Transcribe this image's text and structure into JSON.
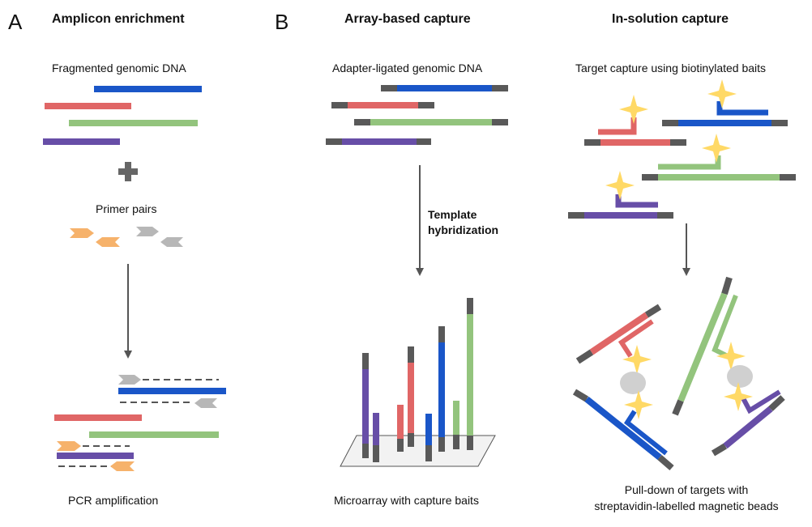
{
  "panel_a": {
    "letter": "A",
    "title": "Amplicon enrichment",
    "step1": "Fragmented genomic DNA",
    "step2": "Primer pairs",
    "step3": "PCR amplification"
  },
  "panel_b": {
    "letter": "B",
    "array": {
      "title": "Array-based capture",
      "step1": "Adapter-ligated genomic DNA",
      "arrow_label_1": "Template",
      "arrow_label_2": "hybridization",
      "step2": "Microarray with capture baits"
    },
    "solution": {
      "title": "In-solution capture",
      "step1": "Target capture using biotinylated baits",
      "step2_line1": "Pull-down of targets with",
      "step2_line2": "streptavidin-labelled magnetic beads"
    }
  },
  "colors": {
    "blue": "#1a56c8",
    "red": "#e06666",
    "green": "#93c47d",
    "purple": "#674ea7",
    "adapter": "#595959",
    "primer_orange": "#f6b26b",
    "primer_gray": "#b7b7b7",
    "biotin_star": "#ffd966",
    "bead": "#d0d0d0",
    "arrow": "#555555"
  }
}
